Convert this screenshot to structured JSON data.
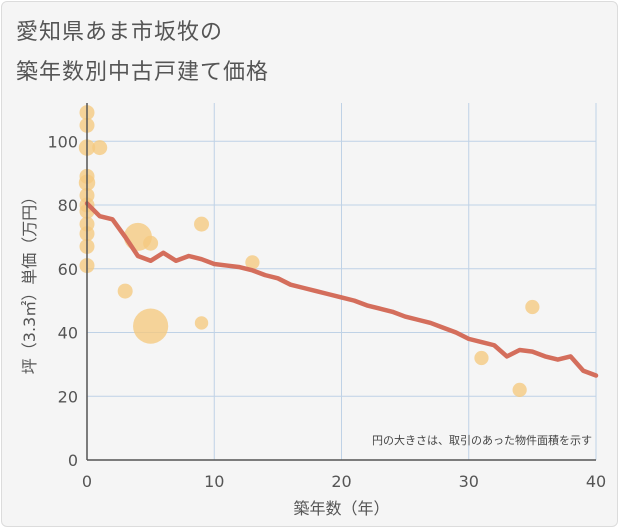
{
  "title_lines": [
    "愛知県あま市坂牧の",
    "築年数別中古戸建て価格"
  ],
  "chart_data": {
    "type": "scatter+line",
    "xlabel": "築年数（年）",
    "ylabel": "坪（3.3㎡）単価（万円）",
    "xlim": [
      0,
      40
    ],
    "ylim": [
      0,
      112
    ],
    "xticks": [
      0,
      10,
      20,
      30,
      40
    ],
    "yticks": [
      0,
      20,
      40,
      60,
      80,
      100
    ],
    "grid": true,
    "annotation": "円の大きさは、取引のあった物件面積を示す",
    "bubbles": [
      {
        "x": 0,
        "y": 109,
        "size": 1
      },
      {
        "x": 0,
        "y": 105,
        "size": 1
      },
      {
        "x": 0,
        "y": 98,
        "size": 1.2
      },
      {
        "x": 1,
        "y": 98,
        "size": 1
      },
      {
        "x": 0,
        "y": 89,
        "size": 1
      },
      {
        "x": 0,
        "y": 87,
        "size": 1.2
      },
      {
        "x": 0,
        "y": 83,
        "size": 1
      },
      {
        "x": 0,
        "y": 80,
        "size": 1
      },
      {
        "x": 0,
        "y": 78,
        "size": 1
      },
      {
        "x": 0,
        "y": 74,
        "size": 1
      },
      {
        "x": 0,
        "y": 71,
        "size": 1
      },
      {
        "x": 0,
        "y": 67,
        "size": 1
      },
      {
        "x": 0,
        "y": 61,
        "size": 1
      },
      {
        "x": 3,
        "y": 53,
        "size": 1
      },
      {
        "x": 4,
        "y": 70,
        "size": 3.5
      },
      {
        "x": 5,
        "y": 68,
        "size": 1
      },
      {
        "x": 5,
        "y": 42,
        "size": 5.5
      },
      {
        "x": 9,
        "y": 74,
        "size": 1
      },
      {
        "x": 9,
        "y": 43,
        "size": 0.8
      },
      {
        "x": 13,
        "y": 62,
        "size": 0.9
      },
      {
        "x": 31,
        "y": 32,
        "size": 0.9
      },
      {
        "x": 34,
        "y": 22,
        "size": 0.9
      },
      {
        "x": 35,
        "y": 48,
        "size": 0.9
      }
    ],
    "trend_line": {
      "x": [
        0,
        1,
        2,
        3,
        4,
        5,
        6,
        7,
        8,
        9,
        10,
        11,
        12,
        13,
        14,
        15,
        16,
        17,
        18,
        19,
        20,
        21,
        22,
        23,
        24,
        25,
        26,
        27,
        28,
        29,
        30,
        31,
        32,
        33,
        34,
        35,
        36,
        37,
        38,
        39,
        40
      ],
      "y": [
        80.5,
        76.5,
        75.5,
        70,
        64,
        62.5,
        65,
        62.5,
        64,
        63,
        61.5,
        61,
        60.5,
        59.5,
        58,
        57,
        55,
        54,
        53,
        52,
        51,
        50,
        48.5,
        47.5,
        46.5,
        45,
        44,
        43,
        41.5,
        40,
        38,
        37,
        36,
        32.5,
        34.5,
        34,
        32.5,
        31.5,
        32.5,
        28,
        26.5
      ]
    },
    "colors": {
      "bubble": "#f5c97f",
      "line": "#d46e5c",
      "grid": "#bfd2e6",
      "axis": "#555555",
      "tick": "#555555"
    }
  }
}
